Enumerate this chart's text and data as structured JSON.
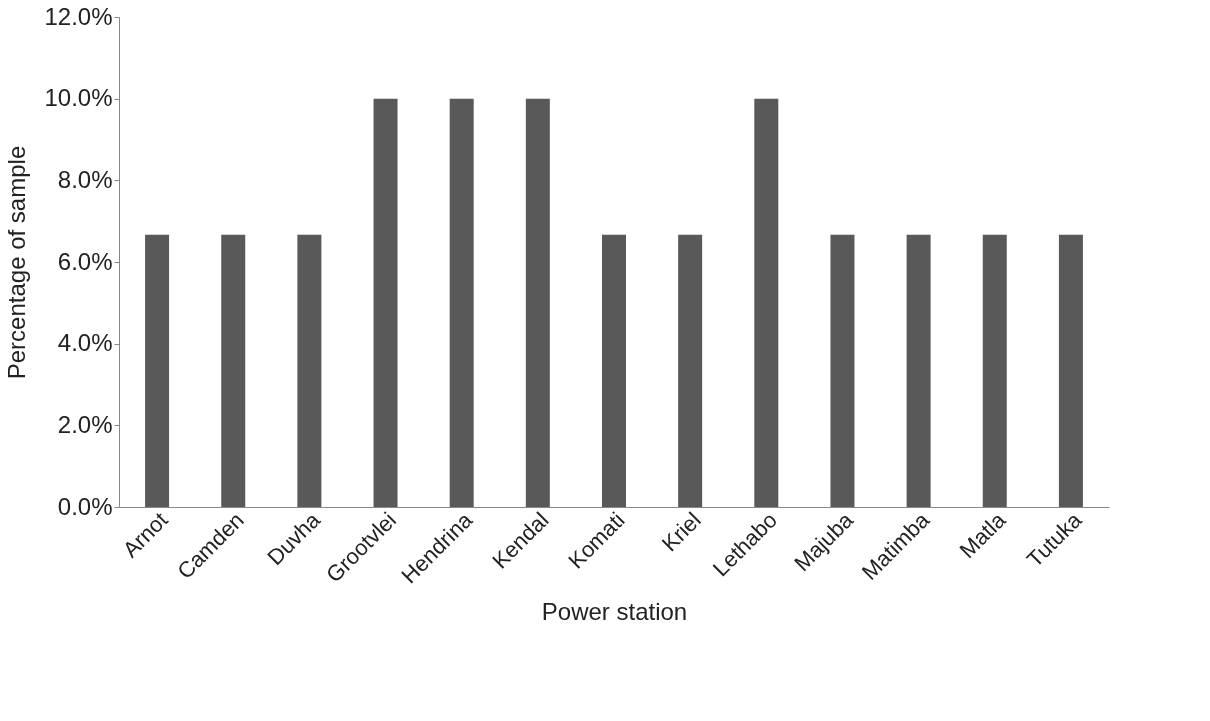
{
  "chart_data": {
    "type": "bar",
    "xlabel": "Power station",
    "ylabel": "Percentage of sample",
    "categories": [
      "Arnot",
      "Camden",
      "Duvha",
      "Grootvlei",
      "Hendrina",
      "Kendal",
      "Komati",
      "Kriel",
      "Lethabo",
      "Majuba",
      "Matimba",
      "Matla",
      "Tutuka"
    ],
    "values": [
      6.67,
      6.67,
      6.67,
      10.0,
      10.0,
      10.0,
      6.67,
      6.67,
      10.0,
      6.67,
      6.67,
      6.67,
      6.67
    ],
    "color": "#595959",
    "ylim": [
      0,
      12
    ],
    "yticks": [
      {
        "value": 0,
        "label": "0.0%"
      },
      {
        "value": 2,
        "label": "2.0%"
      },
      {
        "value": 4,
        "label": "4.0%"
      },
      {
        "value": 6,
        "label": "6.0%"
      },
      {
        "value": 8,
        "label": "8.0%"
      },
      {
        "value": 10,
        "label": "10.0%"
      },
      {
        "value": 12,
        "label": "12.0%"
      }
    ],
    "grid": false
  }
}
